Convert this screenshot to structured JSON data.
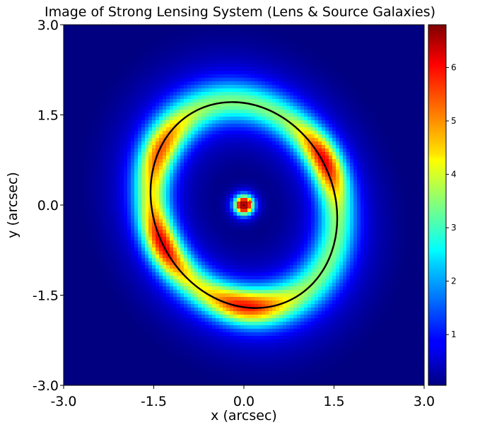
{
  "chart_data": {
    "type": "heatmap",
    "title": "Image of Strong Lensing System (Lens & Source Galaxies)",
    "xlabel": "x (arcsec)",
    "ylabel": "y (arcsec)",
    "xlim": [
      -3.0,
      3.0
    ],
    "ylim": [
      -3.0,
      3.0
    ],
    "x_ticks": [
      "-3.0",
      "-1.5",
      "0.0",
      "1.5",
      "3.0"
    ],
    "y_ticks": [
      "-3.0",
      "-1.5",
      "0.0",
      "1.5",
      "3.0"
    ],
    "colormap": "jet",
    "colorbar": {
      "range": [
        0.05,
        6.8
      ],
      "ticks": [
        "1",
        "2",
        "3",
        "4",
        "5",
        "6"
      ]
    },
    "grid": false,
    "lens_galaxy": {
      "center": [
        0.0,
        0.0
      ],
      "peak": 6.8,
      "sigma": 0.1
    },
    "arc": {
      "center": [
        0.0,
        0.0
      ],
      "semi_major": 1.76,
      "semi_minor": 1.5,
      "rotation_deg": -64,
      "width": 0.22,
      "base_brightness": 2.5,
      "bright_spots": [
        {
          "x": 1.55,
          "y": 0.85,
          "peak": 5.6
        },
        {
          "x": -1.35,
          "y": -0.65,
          "peak": 5.2
        },
        {
          "x": 0.05,
          "y": -1.5,
          "peak": 5.2
        },
        {
          "x": -1.25,
          "y": 0.85,
          "peak": 4.6
        }
      ]
    },
    "critical_curve": {
      "center": [
        0.0,
        0.0
      ],
      "semi_major": 1.76,
      "semi_minor": 1.5,
      "rotation_deg": -64,
      "color": "#000000"
    },
    "markers": [
      {
        "name": "lens-center",
        "x": 0.0,
        "y": 0.0,
        "shape": "square",
        "color": "#8b0000"
      },
      {
        "name": "source-position",
        "x": 0.1,
        "y": 0.05,
        "shape": "plus",
        "color": "#ff0000"
      }
    ]
  }
}
